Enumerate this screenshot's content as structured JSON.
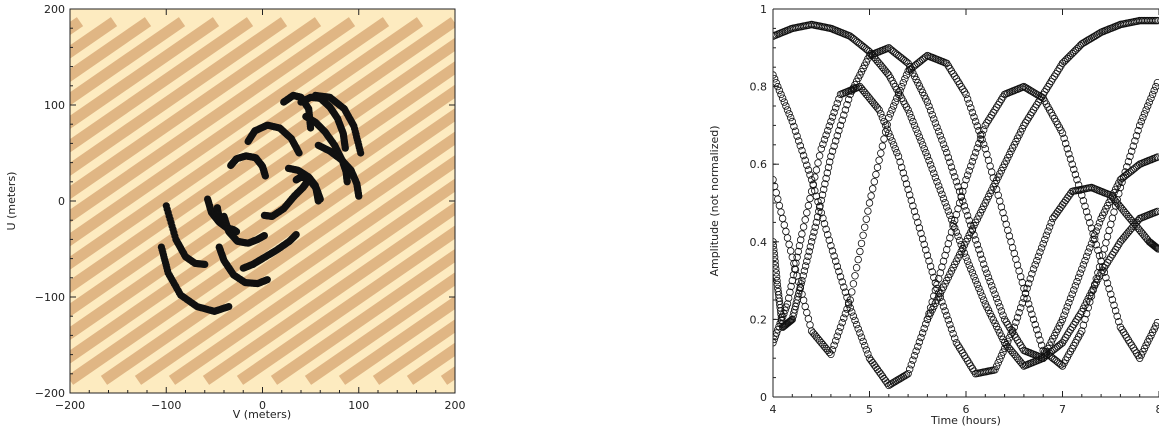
{
  "chart_data": [
    {
      "type": "scatter",
      "background": "fringe-pattern",
      "colors": {
        "fringe_light": "#fdebc0",
        "fringe_dark": "#c98b52",
        "points": "#111111"
      },
      "xlabel": "V (meters)",
      "ylabel": "U (meters)",
      "xlim": [
        -200,
        200
      ],
      "ylim": [
        -200,
        200
      ],
      "xticks": [
        {
          "v": -200,
          "label": "−200"
        },
        {
          "v": -100,
          "label": "−100"
        },
        {
          "v": 0,
          "label": "0"
        },
        {
          "v": 100,
          "label": "100"
        },
        {
          "v": 200,
          "label": "200"
        }
      ],
      "yticks": [
        {
          "v": -200,
          "label": "−200"
        },
        {
          "v": -100,
          "label": "−100"
        },
        {
          "v": 0,
          "label": "0"
        },
        {
          "v": 100,
          "label": "100"
        },
        {
          "v": 200,
          "label": "200"
        }
      ],
      "tracks": [
        {
          "x": [
            -100,
            -90,
            -80,
            -70,
            -60
          ],
          "y": [
            -5,
            -40,
            -58,
            -65,
            -66
          ]
        },
        {
          "x": [
            -105,
            -98,
            -85,
            -68,
            -50,
            -35
          ],
          "y": [
            -48,
            -75,
            -98,
            -110,
            -115,
            -110
          ]
        },
        {
          "x": [
            -57,
            -53,
            -45,
            -37,
            -30,
            -27
          ],
          "y": [
            2,
            -12,
            -22,
            -28,
            -30,
            -32
          ]
        },
        {
          "x": [
            -45,
            -40,
            -30,
            -18,
            -5,
            5
          ],
          "y": [
            -48,
            -62,
            -77,
            -85,
            -86,
            -82
          ]
        },
        {
          "x": [
            -47,
            -45,
            -40,
            -35,
            -30
          ],
          "y": [
            -7,
            -17,
            -25,
            -29,
            -30
          ]
        },
        {
          "x": [
            -40,
            -35,
            -26,
            -15,
            -5,
            2
          ],
          "y": [
            -16,
            -32,
            -42,
            -44,
            -40,
            -36
          ]
        },
        {
          "x": [
            -33,
            -27,
            -17,
            -7,
            0,
            3
          ],
          "y": [
            37,
            44,
            47,
            45,
            36,
            26
          ]
        },
        {
          "x": [
            -15,
            -8,
            5,
            18,
            30,
            38
          ],
          "y": [
            62,
            73,
            79,
            76,
            65,
            50
          ]
        },
        {
          "x": [
            2,
            10,
            22,
            33,
            42,
            45
          ],
          "y": [
            -15,
            -16,
            -8,
            5,
            14,
            18
          ]
        },
        {
          "x": [
            -20,
            -10,
            0,
            15,
            28,
            35
          ],
          "y": [
            -70,
            -66,
            -60,
            -51,
            -42,
            -35
          ]
        },
        {
          "x": [
            22,
            32,
            40,
            48,
            50
          ],
          "y": [
            103,
            110,
            108,
            96,
            76
          ]
        },
        {
          "x": [
            27,
            37,
            48,
            55,
            58
          ],
          "y": [
            34,
            32,
            25,
            16,
            0
          ]
        },
        {
          "x": [
            35,
            40,
            48,
            56,
            60
          ],
          "y": [
            22,
            25,
            23,
            13,
            2
          ]
        },
        {
          "x": [
            45,
            55,
            65,
            75,
            83,
            87,
            88
          ],
          "y": [
            88,
            82,
            72,
            58,
            42,
            30,
            20
          ]
        },
        {
          "x": [
            40,
            50,
            60,
            70,
            78,
            84,
            86
          ],
          "y": [
            103,
            108,
            107,
            98,
            86,
            70,
            55
          ]
        },
        {
          "x": [
            55,
            70,
            85,
            95,
            102
          ],
          "y": [
            110,
            108,
            96,
            78,
            50
          ]
        },
        {
          "x": [
            58,
            70,
            82,
            92,
            98,
            100
          ],
          "y": [
            58,
            52,
            43,
            32,
            18,
            5
          ]
        }
      ]
    },
    {
      "type": "scatter",
      "marker": "open-circle",
      "xlabel": "Time (hours)",
      "ylabel": "Amplitude (not normalized)",
      "xlim": [
        4,
        8
      ],
      "ylim": [
        0,
        1
      ],
      "xticks": [
        {
          "v": 4,
          "label": "4"
        },
        {
          "v": 5,
          "label": "5"
        },
        {
          "v": 6,
          "label": "6"
        },
        {
          "v": 7,
          "label": "7"
        },
        {
          "v": 8,
          "label": "8"
        }
      ],
      "yticks": [
        {
          "v": 0,
          "label": "0"
        },
        {
          "v": 0.2,
          "label": "0.2"
        },
        {
          "v": 0.4,
          "label": "0.4"
        },
        {
          "v": 0.6,
          "label": "0.6"
        },
        {
          "v": 0.8,
          "label": "0.8"
        },
        {
          "v": 1,
          "label": "1"
        }
      ],
      "series": [
        {
          "x": [
            4.0,
            4.2,
            4.4,
            4.6,
            4.8,
            5.0,
            5.2,
            5.4,
            5.6,
            5.8,
            6.0,
            6.2,
            6.4,
            6.6,
            6.8,
            7.0,
            7.2,
            7.4,
            7.6,
            7.8,
            8.0
          ],
          "y": [
            0.93,
            0.95,
            0.96,
            0.95,
            0.93,
            0.89,
            0.83,
            0.74,
            0.62,
            0.49,
            0.36,
            0.24,
            0.14,
            0.08,
            0.1,
            0.2,
            0.33,
            0.46,
            0.56,
            0.6,
            0.62
          ]
        },
        {
          "x": [
            4.0,
            4.2,
            4.4,
            4.6,
            4.8,
            5.0,
            5.2,
            5.4,
            5.6,
            5.8,
            6.0,
            6.2,
            6.4,
            6.6,
            6.8,
            7.0,
            7.2,
            7.4,
            7.6,
            7.8,
            8.0
          ],
          "y": [
            0.83,
            0.71,
            0.56,
            0.39,
            0.23,
            0.1,
            0.03,
            0.06,
            0.2,
            0.38,
            0.56,
            0.7,
            0.78,
            0.8,
            0.77,
            0.68,
            0.52,
            0.35,
            0.18,
            0.1,
            0.2
          ]
        },
        {
          "x": [
            4.0,
            4.2,
            4.4,
            4.6,
            4.8,
            5.0,
            5.2,
            5.4,
            5.6,
            5.8,
            6.0,
            6.2,
            6.4,
            6.6,
            6.8,
            7.0,
            7.2,
            7.4,
            7.6,
            7.8,
            8.0
          ],
          "y": [
            0.56,
            0.36,
            0.17,
            0.11,
            0.25,
            0.5,
            0.72,
            0.84,
            0.88,
            0.86,
            0.78,
            0.64,
            0.46,
            0.28,
            0.12,
            0.08,
            0.17,
            0.35,
            0.54,
            0.7,
            0.82
          ]
        },
        {
          "x": [
            4.0,
            4.15,
            4.3,
            4.5,
            4.7,
            4.9,
            5.1,
            5.3,
            5.5,
            5.7,
            5.9,
            6.1,
            6.3,
            6.5,
            6.7,
            6.9,
            7.1,
            7.3,
            7.5,
            7.7,
            7.9,
            8.0
          ],
          "y": [
            0.14,
            0.24,
            0.42,
            0.64,
            0.78,
            0.8,
            0.74,
            0.62,
            0.45,
            0.28,
            0.14,
            0.06,
            0.07,
            0.18,
            0.33,
            0.46,
            0.53,
            0.54,
            0.52,
            0.46,
            0.4,
            0.38
          ]
        },
        {
          "x": [
            4.0,
            4.05,
            4.1,
            4.2,
            4.3,
            4.45,
            4.6,
            4.8,
            5.0,
            5.2,
            5.4,
            5.6,
            5.8,
            6.0,
            6.2,
            6.4,
            6.6,
            6.8,
            7.0,
            7.2,
            7.4,
            7.6,
            7.8,
            8.0
          ],
          "y": [
            0.4,
            0.28,
            0.18,
            0.2,
            0.3,
            0.45,
            0.62,
            0.78,
            0.88,
            0.9,
            0.86,
            0.76,
            0.63,
            0.48,
            0.33,
            0.2,
            0.12,
            0.1,
            0.14,
            0.22,
            0.32,
            0.4,
            0.46,
            0.48
          ]
        },
        {
          "x": [
            5.6,
            5.8,
            6.0,
            6.2,
            6.4,
            6.6,
            6.8,
            7.0,
            7.2,
            7.4,
            7.6,
            7.8,
            8.0
          ],
          "y": [
            0.2,
            0.3,
            0.4,
            0.5,
            0.6,
            0.7,
            0.78,
            0.86,
            0.91,
            0.94,
            0.96,
            0.97,
            0.97
          ]
        }
      ]
    }
  ]
}
